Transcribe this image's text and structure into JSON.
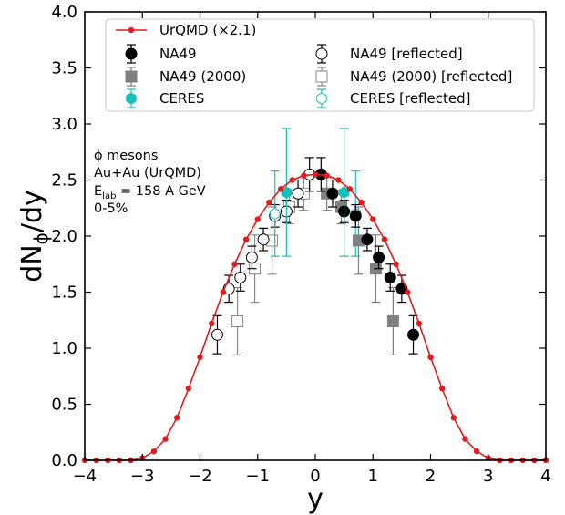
{
  "chart_data": {
    "type": "scatter",
    "xlabel": "y",
    "ylabel_main": "dN",
    "ylabel_sub": "ϕ",
    "ylabel_tail": "/dy",
    "xlim": [
      -4,
      4
    ],
    "ylim": [
      0,
      4
    ],
    "xticks": [
      -4,
      -3,
      -2,
      -1,
      0,
      1,
      2,
      3,
      4
    ],
    "xtick_labels": [
      "−4",
      "−3",
      "−2",
      "−1",
      "0",
      "1",
      "2",
      "3",
      "4"
    ],
    "yticks": [
      0,
      0.5,
      1,
      1.5,
      2,
      2.5,
      3,
      3.5,
      4
    ],
    "ytick_labels": [
      "0.0",
      "0.5",
      "1.0",
      "1.5",
      "2.0",
      "2.5",
      "3.0",
      "3.5",
      "4.0"
    ],
    "grid": false,
    "legend_position": "top",
    "annotation": {
      "line1": "ϕ mesons",
      "line2": "Au+Au (UrQMD)",
      "line3_main": "E",
      "line3_sub": "lab",
      "line3_tail": " = 158 A GeV",
      "line4": "0-5%"
    },
    "colors": {
      "urqmd": "#e41a1c",
      "na49": "#000000",
      "na49_2000": "#808080",
      "ceres": "#17bebb"
    },
    "series": [
      {
        "name": "UrQMD (×2.1)",
        "style": "line-dots",
        "x": [
          -4.0,
          -3.8,
          -3.6,
          -3.4,
          -3.2,
          -3.0,
          -2.8,
          -2.6,
          -2.4,
          -2.2,
          -2.0,
          -1.8,
          -1.6,
          -1.4,
          -1.2,
          -1.0,
          -0.8,
          -0.6,
          -0.4,
          -0.2,
          0.0,
          0.2,
          0.4,
          0.6,
          0.8,
          1.0,
          1.2,
          1.4,
          1.6,
          1.8,
          2.0,
          2.2,
          2.4,
          2.6,
          2.8,
          3.0,
          3.2,
          3.4,
          3.6,
          3.8,
          4.0
        ],
        "y": [
          0.0,
          0.0,
          0.0,
          0.0,
          0.0,
          0.02,
          0.08,
          0.19,
          0.38,
          0.64,
          0.92,
          1.22,
          1.5,
          1.75,
          1.97,
          2.15,
          2.3,
          2.42,
          2.5,
          2.54,
          2.55,
          2.54,
          2.5,
          2.42,
          2.3,
          2.15,
          1.97,
          1.75,
          1.5,
          1.22,
          0.92,
          0.64,
          0.38,
          0.19,
          0.08,
          0.02,
          0.0,
          0.0,
          0.0,
          0.0,
          0.0
        ]
      },
      {
        "name": "NA49",
        "style": "filled-circle",
        "points": [
          {
            "x": 0.1,
            "y": 2.55,
            "err": 0.15
          },
          {
            "x": 0.3,
            "y": 2.38,
            "err": 0.12
          },
          {
            "x": 0.5,
            "y": 2.22,
            "err": 0.1
          },
          {
            "x": 0.7,
            "y": 2.18,
            "err": 0.1
          },
          {
            "x": 0.9,
            "y": 1.97,
            "err": 0.1
          },
          {
            "x": 1.1,
            "y": 1.81,
            "err": 0.1
          },
          {
            "x": 1.3,
            "y": 1.63,
            "err": 0.12
          },
          {
            "x": 1.5,
            "y": 1.53,
            "err": 0.12
          },
          {
            "x": 1.7,
            "y": 1.12,
            "err": 0.17
          }
        ]
      },
      {
        "name": "NA49 (2000)",
        "style": "filled-square",
        "points": [
          {
            "x": 0.2,
            "y": 2.38,
            "err": 0.15
          },
          {
            "x": 0.45,
            "y": 2.26,
            "err": 0.15
          },
          {
            "x": 0.75,
            "y": 1.96,
            "err": 0.3
          },
          {
            "x": 1.05,
            "y": 1.71,
            "err": 0.3
          },
          {
            "x": 1.35,
            "y": 1.24,
            "err": 0.3
          }
        ]
      },
      {
        "name": "CERES",
        "style": "filled-hexagon",
        "points": [
          {
            "x": -0.5,
            "y": 2.39,
            "err": 0.57
          },
          {
            "x": 0.5,
            "y": 2.39,
            "err": 0.57
          }
        ]
      },
      {
        "name": "NA49 [reflected]",
        "style": "open-circle",
        "points": [
          {
            "x": -0.1,
            "y": 2.55,
            "err": 0.15
          },
          {
            "x": -0.3,
            "y": 2.38,
            "err": 0.12
          },
          {
            "x": -0.5,
            "y": 2.22,
            "err": 0.1
          },
          {
            "x": -0.7,
            "y": 2.18,
            "err": 0.1
          },
          {
            "x": -0.9,
            "y": 1.97,
            "err": 0.1
          },
          {
            "x": -1.1,
            "y": 1.81,
            "err": 0.1
          },
          {
            "x": -1.3,
            "y": 1.63,
            "err": 0.12
          },
          {
            "x": -1.5,
            "y": 1.53,
            "err": 0.12
          },
          {
            "x": -1.7,
            "y": 1.12,
            "err": 0.17
          }
        ]
      },
      {
        "name": "NA49 (2000) [reflected]",
        "style": "open-square",
        "points": [
          {
            "x": -0.2,
            "y": 2.38,
            "err": 0.15
          },
          {
            "x": -0.45,
            "y": 2.26,
            "err": 0.15
          },
          {
            "x": -0.75,
            "y": 1.96,
            "err": 0.3
          },
          {
            "x": -1.05,
            "y": 1.71,
            "err": 0.3
          },
          {
            "x": -1.35,
            "y": 1.24,
            "err": 0.3
          }
        ]
      },
      {
        "name": "CERES [reflected]",
        "style": "open-hexagon",
        "points": [
          {
            "x": -0.7,
            "y": 2.2,
            "err": 0.38
          },
          {
            "x": 0.7,
            "y": 2.2,
            "err": 0.38
          }
        ]
      }
    ]
  }
}
